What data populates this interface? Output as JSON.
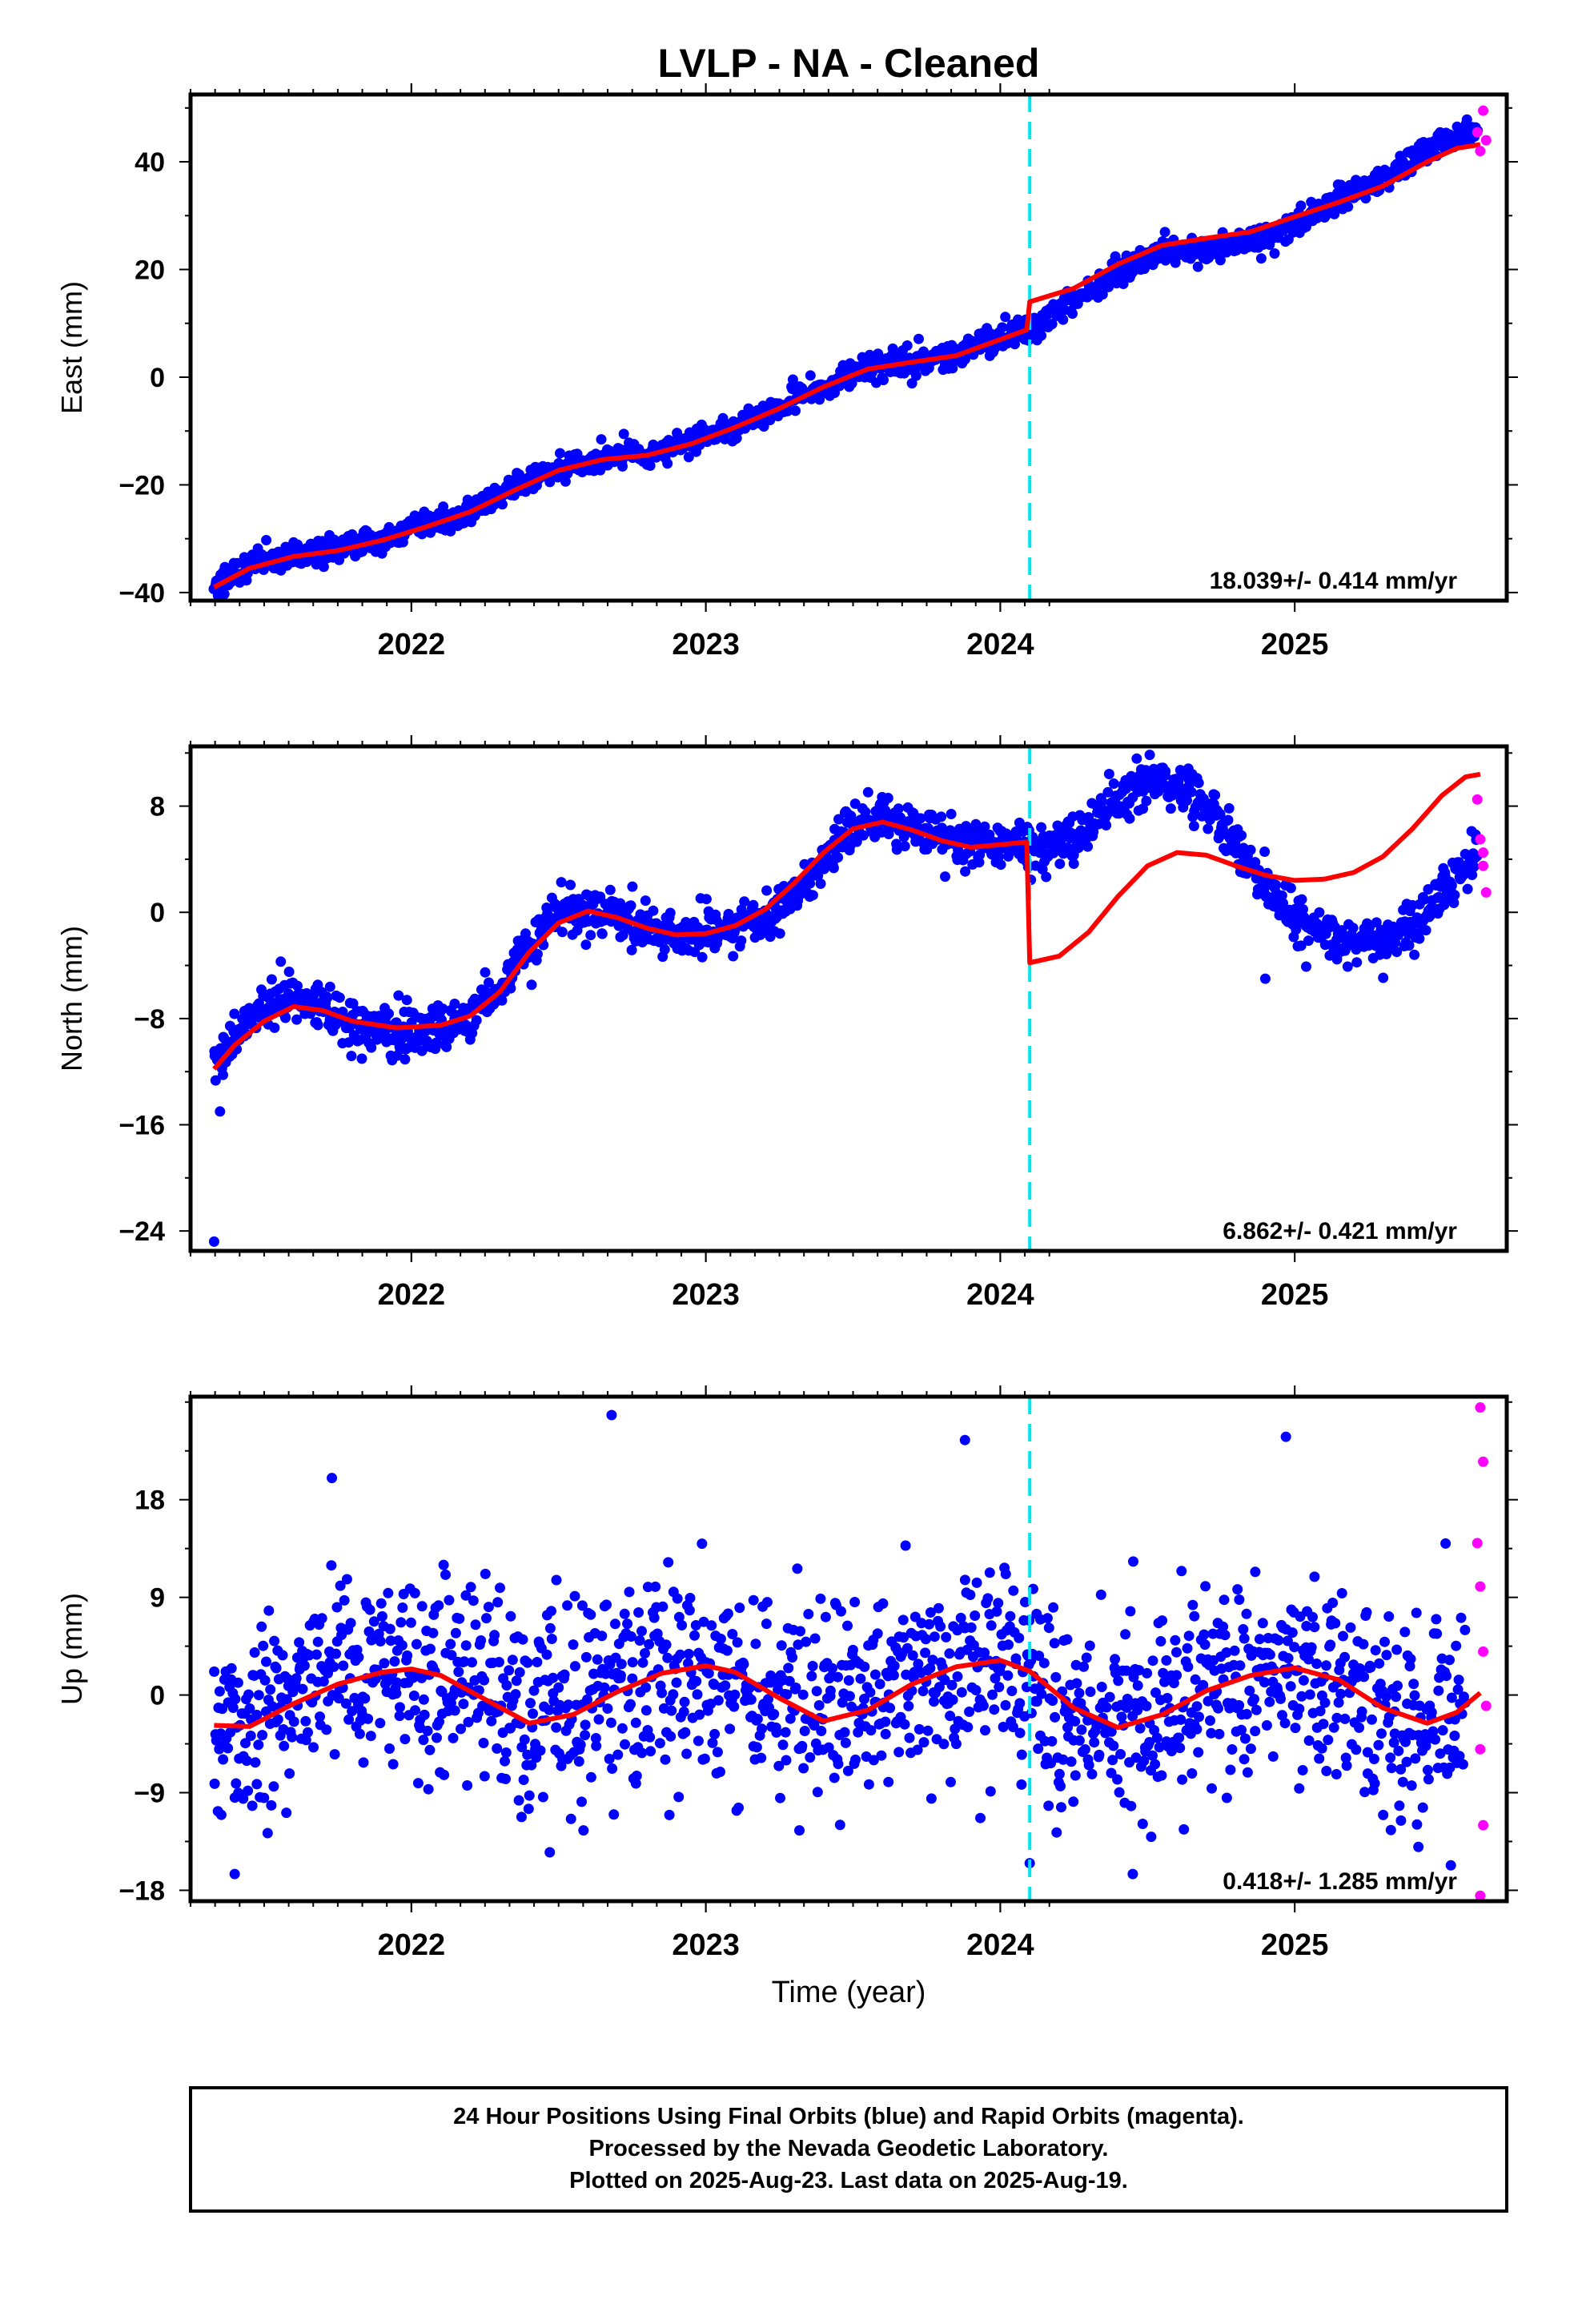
{
  "chart_data": {
    "type": "scatter",
    "title": "LVLP  - NA - Cleaned",
    "xlabel": "Time (year)",
    "xlim": [
      2021.25,
      2025.72
    ],
    "xticks": [
      2022,
      2023,
      2024,
      2025
    ],
    "vertical_marker_x": 2024.1,
    "series_colors": {
      "final": "#0000ff",
      "rapid": "#ff00ff",
      "model": "#ff0000",
      "marker": "#00e5ee"
    },
    "panels": [
      {
        "key": "east",
        "ylabel": "East (mm)",
        "ylim": [
          -41.5,
          52.5
        ],
        "yticks": [
          -40,
          -20,
          0,
          20,
          40
        ],
        "rate_label": "18.039+/- 0.414 mm/yr",
        "final_points": [
          [
            2021.33,
            -38.5
          ],
          [
            2021.45,
            -35.0
          ],
          [
            2021.6,
            -32.8
          ],
          [
            2021.75,
            -31.8
          ],
          [
            2021.9,
            -29.8
          ],
          [
            2022.05,
            -27.5
          ],
          [
            2022.2,
            -24.8
          ],
          [
            2022.35,
            -20.5
          ],
          [
            2022.5,
            -17.0
          ],
          [
            2022.65,
            -15.0
          ],
          [
            2022.8,
            -14.2
          ],
          [
            2022.95,
            -12.0
          ],
          [
            2023.1,
            -9.0
          ],
          [
            2023.25,
            -5.5
          ],
          [
            2023.4,
            -1.5
          ],
          [
            2023.55,
            1.8
          ],
          [
            2023.7,
            3.0
          ],
          [
            2023.85,
            4.2
          ],
          [
            2024.0,
            7.0
          ],
          [
            2024.08,
            8.5
          ],
          [
            2024.15,
            10.5
          ],
          [
            2024.25,
            14.0
          ],
          [
            2024.4,
            19.5
          ],
          [
            2024.55,
            23.5
          ],
          [
            2024.7,
            24.0
          ],
          [
            2024.85,
            25.0
          ],
          [
            2025.0,
            28.5
          ],
          [
            2025.15,
            33.0
          ],
          [
            2025.3,
            37.0
          ],
          [
            2025.45,
            42.5
          ],
          [
            2025.55,
            45.0
          ],
          [
            2025.62,
            45.5
          ]
        ],
        "rapid_points": [
          [
            2025.62,
            45.5
          ],
          [
            2025.63,
            42.0
          ],
          [
            2025.64,
            49.5
          ],
          [
            2025.65,
            44.0
          ]
        ],
        "model_curve": [
          [
            2021.33,
            -39.0
          ],
          [
            2021.45,
            -35.5
          ],
          [
            2021.6,
            -33.3
          ],
          [
            2021.75,
            -32.2
          ],
          [
            2021.9,
            -30.3
          ],
          [
            2022.05,
            -27.8
          ],
          [
            2022.2,
            -25.0
          ],
          [
            2022.35,
            -21.0
          ],
          [
            2022.5,
            -17.3
          ],
          [
            2022.65,
            -15.3
          ],
          [
            2022.8,
            -14.5
          ],
          [
            2022.95,
            -12.4
          ],
          [
            2023.1,
            -9.3
          ],
          [
            2023.25,
            -5.8
          ],
          [
            2023.4,
            -1.8
          ],
          [
            2023.55,
            1.5
          ],
          [
            2023.7,
            2.8
          ],
          [
            2023.85,
            4.0
          ],
          [
            2024.0,
            7.0
          ],
          [
            2024.09,
            8.8
          ],
          [
            2024.1,
            14.0
          ],
          [
            2024.25,
            16.5
          ],
          [
            2024.4,
            21.0
          ],
          [
            2024.55,
            24.5
          ],
          [
            2024.7,
            25.8
          ],
          [
            2024.85,
            27.0
          ],
          [
            2025.0,
            29.8
          ],
          [
            2025.15,
            32.5
          ],
          [
            2025.3,
            35.5
          ],
          [
            2025.45,
            40.0
          ],
          [
            2025.55,
            42.5
          ],
          [
            2025.63,
            43.2
          ]
        ]
      },
      {
        "key": "north",
        "ylabel": "North (mm)",
        "ylim": [
          -25.5,
          12.5
        ],
        "yticks": [
          -24,
          -16,
          -8,
          0,
          8
        ],
        "rate_label": "6.862+/- 0.421 mm/yr",
        "final_points": [
          [
            2021.33,
            -11.5
          ],
          [
            2021.4,
            -9.0
          ],
          [
            2021.5,
            -7.0
          ],
          [
            2021.6,
            -6.2
          ],
          [
            2021.7,
            -7.5
          ],
          [
            2021.8,
            -8.7
          ],
          [
            2021.95,
            -9.0
          ],
          [
            2022.1,
            -8.9
          ],
          [
            2022.2,
            -8.0
          ],
          [
            2022.3,
            -5.8
          ],
          [
            2022.4,
            -2.5
          ],
          [
            2022.5,
            -0.2
          ],
          [
            2022.6,
            0.3
          ],
          [
            2022.7,
            -0.5
          ],
          [
            2022.8,
            -1.3
          ],
          [
            2022.9,
            -1.8
          ],
          [
            2023.0,
            -1.5
          ],
          [
            2023.1,
            -0.6
          ],
          [
            2023.2,
            -0.9
          ],
          [
            2023.3,
            1.5
          ],
          [
            2023.4,
            4.0
          ],
          [
            2023.5,
            6.5
          ],
          [
            2023.6,
            7.5
          ],
          [
            2023.7,
            6.5
          ],
          [
            2023.8,
            5.5
          ],
          [
            2023.9,
            5.2
          ],
          [
            2024.0,
            5.0
          ],
          [
            2024.08,
            5.5
          ],
          [
            2024.15,
            4.8
          ],
          [
            2024.25,
            5.5
          ],
          [
            2024.35,
            7.5
          ],
          [
            2024.45,
            9.2
          ],
          [
            2024.55,
            9.8
          ],
          [
            2024.65,
            9.0
          ],
          [
            2024.75,
            6.8
          ],
          [
            2024.85,
            3.5
          ],
          [
            2024.95,
            0.8
          ],
          [
            2025.05,
            -0.9
          ],
          [
            2025.15,
            -1.8
          ],
          [
            2025.25,
            -2.2
          ],
          [
            2025.35,
            -1.8
          ],
          [
            2025.45,
            -0.2
          ],
          [
            2025.52,
            1.8
          ],
          [
            2025.58,
            3.5
          ],
          [
            2025.62,
            4.5
          ]
        ],
        "outliers": [
          [
            2021.33,
            -24.8
          ],
          [
            2021.35,
            -15.0
          ],
          [
            2024.9,
            -5.0
          ]
        ],
        "rapid_points": [
          [
            2025.62,
            8.5
          ],
          [
            2025.63,
            5.5
          ],
          [
            2025.64,
            3.5
          ],
          [
            2025.65,
            1.5
          ],
          [
            2025.64,
            4.5
          ]
        ],
        "model_curve": [
          [
            2021.33,
            -11.8
          ],
          [
            2021.4,
            -10.0
          ],
          [
            2021.5,
            -8.2
          ],
          [
            2021.6,
            -7.1
          ],
          [
            2021.7,
            -7.4
          ],
          [
            2021.8,
            -8.2
          ],
          [
            2021.95,
            -8.7
          ],
          [
            2022.1,
            -8.5
          ],
          [
            2022.2,
            -7.8
          ],
          [
            2022.3,
            -6.0
          ],
          [
            2022.4,
            -3.0
          ],
          [
            2022.5,
            -0.8
          ],
          [
            2022.6,
            0.1
          ],
          [
            2022.7,
            -0.4
          ],
          [
            2022.8,
            -1.2
          ],
          [
            2022.9,
            -1.7
          ],
          [
            2023.0,
            -1.6
          ],
          [
            2023.1,
            -1.0
          ],
          [
            2023.2,
            0.2
          ],
          [
            2023.3,
            2.2
          ],
          [
            2023.4,
            4.5
          ],
          [
            2023.5,
            6.3
          ],
          [
            2023.6,
            6.8
          ],
          [
            2023.7,
            6.2
          ],
          [
            2023.8,
            5.4
          ],
          [
            2023.9,
            4.9
          ],
          [
            2024.0,
            5.1
          ],
          [
            2024.09,
            5.3
          ],
          [
            2024.1,
            -3.8
          ],
          [
            2024.2,
            -3.3
          ],
          [
            2024.3,
            -1.5
          ],
          [
            2024.4,
            1.2
          ],
          [
            2024.5,
            3.5
          ],
          [
            2024.6,
            4.5
          ],
          [
            2024.7,
            4.3
          ],
          [
            2024.8,
            3.5
          ],
          [
            2024.9,
            2.8
          ],
          [
            2025.0,
            2.4
          ],
          [
            2025.1,
            2.5
          ],
          [
            2025.2,
            3.0
          ],
          [
            2025.3,
            4.2
          ],
          [
            2025.4,
            6.3
          ],
          [
            2025.5,
            8.8
          ],
          [
            2025.58,
            10.2
          ],
          [
            2025.63,
            10.4
          ]
        ]
      },
      {
        "key": "up",
        "ylabel": "Up (mm)",
        "ylim": [
          -19,
          27.5
        ],
        "yticks": [
          -18,
          -9,
          0,
          9,
          18
        ],
        "rate_label": "0.418+/- 1.285 mm/yr",
        "final_points": [
          [
            2021.33,
            -2.0
          ],
          [
            2021.45,
            -3.0
          ],
          [
            2021.6,
            -0.5
          ],
          [
            2021.75,
            1.2
          ],
          [
            2021.9,
            2.0
          ],
          [
            2022.0,
            2.6
          ],
          [
            2022.1,
            2.0
          ],
          [
            2022.25,
            0.0
          ],
          [
            2022.4,
            -2.5
          ],
          [
            2022.55,
            -1.5
          ],
          [
            2022.7,
            0.5
          ],
          [
            2022.85,
            2.0
          ],
          [
            2023.0,
            2.8
          ],
          [
            2023.1,
            2.0
          ],
          [
            2023.25,
            -0.5
          ],
          [
            2023.4,
            -2.2
          ],
          [
            2023.55,
            -1.0
          ],
          [
            2023.7,
            1.5
          ],
          [
            2023.85,
            2.8
          ],
          [
            2024.0,
            3.2
          ],
          [
            2024.1,
            2.0
          ],
          [
            2024.25,
            -1.5
          ],
          [
            2024.4,
            -3.0
          ],
          [
            2024.55,
            -1.5
          ],
          [
            2024.7,
            0.5
          ],
          [
            2024.85,
            1.8
          ],
          [
            2025.0,
            2.6
          ],
          [
            2025.15,
            1.2
          ],
          [
            2025.3,
            -1.5
          ],
          [
            2025.45,
            -2.5
          ],
          [
            2025.58,
            -1.0
          ]
        ],
        "outliers": [
          [
            2021.73,
            20.0
          ],
          [
            2022.68,
            25.8
          ],
          [
            2023.88,
            23.5
          ],
          [
            2024.97,
            23.8
          ],
          [
            2021.4,
            -16.5
          ],
          [
            2022.47,
            -14.5
          ],
          [
            2024.1,
            -15.5
          ],
          [
            2024.45,
            -16.5
          ],
          [
            2025.42,
            -14.0
          ]
        ],
        "rapid_points": [
          [
            2025.63,
            26.5
          ],
          [
            2025.64,
            21.5
          ],
          [
            2025.62,
            14.0
          ],
          [
            2025.63,
            10.0
          ],
          [
            2025.64,
            4.0
          ],
          [
            2025.65,
            -1.0
          ],
          [
            2025.63,
            -5.0
          ],
          [
            2025.64,
            -12.0
          ],
          [
            2025.63,
            -18.5
          ]
        ],
        "model_curve": [
          [
            2021.33,
            -2.8
          ],
          [
            2021.45,
            -2.9
          ],
          [
            2021.6,
            -0.8
          ],
          [
            2021.75,
            1.0
          ],
          [
            2021.9,
            2.1
          ],
          [
            2022.0,
            2.4
          ],
          [
            2022.1,
            1.8
          ],
          [
            2022.25,
            -0.4
          ],
          [
            2022.4,
            -2.6
          ],
          [
            2022.55,
            -1.8
          ],
          [
            2022.7,
            0.3
          ],
          [
            2022.85,
            2.0
          ],
          [
            2023.0,
            2.7
          ],
          [
            2023.1,
            2.1
          ],
          [
            2023.25,
            -0.3
          ],
          [
            2023.4,
            -2.4
          ],
          [
            2023.55,
            -1.4
          ],
          [
            2023.7,
            1.0
          ],
          [
            2023.85,
            2.6
          ],
          [
            2024.0,
            3.2
          ],
          [
            2024.1,
            2.2
          ],
          [
            2024.25,
            -1.2
          ],
          [
            2024.4,
            -3.0
          ],
          [
            2024.55,
            -1.8
          ],
          [
            2024.7,
            0.4
          ],
          [
            2024.85,
            1.8
          ],
          [
            2025.0,
            2.5
          ],
          [
            2025.15,
            1.4
          ],
          [
            2025.3,
            -1.2
          ],
          [
            2025.45,
            -2.6
          ],
          [
            2025.55,
            -1.6
          ],
          [
            2025.63,
            0.2
          ]
        ]
      }
    ]
  },
  "footer": {
    "line1": "24 Hour Positions Using Final Orbits (blue) and Rapid Orbits (magenta).",
    "line2": "Processed by the Nevada Geodetic Laboratory.",
    "line3": "Plotted on 2025-Aug-23. Last data on 2025-Aug-19."
  }
}
